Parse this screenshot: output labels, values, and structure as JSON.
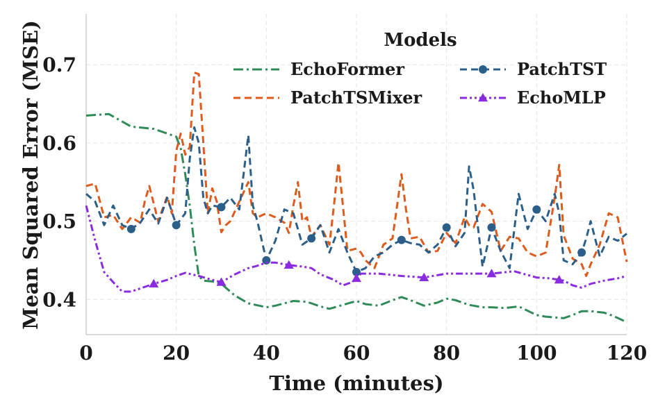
{
  "chart_data": {
    "type": "line",
    "xlabel": "Time (minutes)",
    "ylabel": "Mean Squared Error (MSE)",
    "xlim": [
      0,
      120
    ],
    "ylim": [
      0.355,
      0.765
    ],
    "xticks": [
      0,
      20,
      40,
      60,
      80,
      100,
      120
    ],
    "yticks": [
      0.4,
      0.5,
      0.6,
      0.7
    ],
    "xtick_labels": [
      "0",
      "20",
      "40",
      "60",
      "80",
      "100",
      "120"
    ],
    "ytick_labels": [
      "0.4",
      "0.5",
      "0.6",
      "0.7"
    ],
    "grid": true,
    "legend": {
      "title": "Models",
      "placement": "top-right",
      "columns": 2,
      "entries": [
        "EchoFormer",
        "PatchTST",
        "PatchTSMixer",
        "EchoMLP"
      ]
    },
    "series": [
      {
        "name": "EchoFormer",
        "color": "#2e8b57",
        "dash": "dash-dot",
        "marker": "none",
        "x": [
          0,
          5,
          10,
          15,
          20,
          21,
          22,
          23,
          24,
          25,
          26,
          28,
          30,
          33,
          36,
          40,
          42,
          46,
          49,
          52,
          54,
          57,
          60,
          62,
          65,
          68,
          70,
          72,
          75,
          78,
          80,
          82,
          85,
          88,
          90,
          93,
          96,
          100,
          102,
          104,
          106,
          108,
          110,
          112,
          115,
          117,
          120
        ],
        "y": [
          0.635,
          0.637,
          0.621,
          0.618,
          0.608,
          0.593,
          0.56,
          0.52,
          0.47,
          0.43,
          0.424,
          0.423,
          0.42,
          0.405,
          0.395,
          0.39,
          0.392,
          0.398,
          0.397,
          0.391,
          0.388,
          0.393,
          0.398,
          0.394,
          0.392,
          0.399,
          0.403,
          0.399,
          0.392,
          0.396,
          0.401,
          0.399,
          0.393,
          0.39,
          0.39,
          0.389,
          0.391,
          0.38,
          0.378,
          0.377,
          0.376,
          0.38,
          0.385,
          0.385,
          0.383,
          0.379,
          0.371
        ]
      },
      {
        "name": "PatchTSMixer",
        "color": "#e05a1c",
        "dash": "dashed",
        "marker": "none",
        "x": [
          0,
          2,
          4,
          6,
          8,
          10,
          12,
          13,
          14,
          16,
          18,
          19,
          20,
          21,
          22,
          23,
          24,
          25,
          26,
          27,
          28,
          29,
          30,
          31,
          32,
          34,
          36,
          37,
          38,
          40,
          42,
          44,
          45,
          46,
          47,
          48,
          49,
          50,
          52,
          54,
          55,
          56,
          57,
          58,
          60,
          61,
          62,
          64,
          66,
          68,
          70,
          71,
          72,
          74,
          76,
          78,
          80,
          82,
          84,
          85,
          86,
          88,
          90,
          92,
          94,
          96,
          98,
          100,
          102,
          104,
          105,
          106,
          108,
          110,
          111,
          112,
          114,
          116,
          118,
          120
        ],
        "y": [
          0.545,
          0.548,
          0.505,
          0.508,
          0.49,
          0.505,
          0.498,
          0.525,
          0.545,
          0.5,
          0.532,
          0.51,
          0.59,
          0.612,
          0.585,
          0.595,
          0.69,
          0.688,
          0.6,
          0.51,
          0.542,
          0.525,
          0.486,
          0.495,
          0.5,
          0.525,
          0.55,
          0.51,
          0.505,
          0.51,
          0.505,
          0.498,
          0.485,
          0.52,
          0.55,
          0.5,
          0.505,
          0.48,
          0.495,
          0.47,
          0.52,
          0.575,
          0.52,
          0.462,
          0.465,
          0.46,
          0.45,
          0.44,
          0.47,
          0.478,
          0.56,
          0.515,
          0.478,
          0.48,
          0.46,
          0.462,
          0.485,
          0.472,
          0.505,
          0.495,
          0.492,
          0.522,
          0.512,
          0.462,
          0.48,
          0.478,
          0.46,
          0.455,
          0.46,
          0.53,
          0.572,
          0.482,
          0.452,
          0.445,
          0.43,
          0.445,
          0.47,
          0.51,
          0.505,
          0.448
        ]
      },
      {
        "name": "PatchTST",
        "color": "#2b5f8a",
        "dash": "dashed",
        "marker": "circle",
        "x": [
          0,
          2,
          4,
          6,
          8,
          10,
          12,
          14,
          16,
          18,
          20,
          22,
          23,
          24,
          25,
          26,
          27,
          28,
          30,
          32,
          34,
          36,
          37,
          38,
          40,
          42,
          44,
          46,
          48,
          50,
          52,
          54,
          56,
          58,
          60,
          62,
          64,
          66,
          68,
          70,
          72,
          74,
          76,
          78,
          80,
          82,
          84,
          85,
          86,
          88,
          90,
          92,
          94,
          96,
          98,
          100,
          102,
          104,
          105,
          106,
          108,
          110,
          111,
          112,
          114,
          116,
          118,
          120
        ],
        "y": [
          0.535,
          0.525,
          0.495,
          0.52,
          0.495,
          0.49,
          0.498,
          0.515,
          0.497,
          0.53,
          0.495,
          0.51,
          0.58,
          0.62,
          0.6,
          0.53,
          0.51,
          0.52,
          0.518,
          0.53,
          0.515,
          0.61,
          0.52,
          0.5,
          0.45,
          0.475,
          0.515,
          0.51,
          0.47,
          0.478,
          0.495,
          0.46,
          0.49,
          0.46,
          0.435,
          0.44,
          0.455,
          0.46,
          0.47,
          0.476,
          0.472,
          0.47,
          0.46,
          0.47,
          0.492,
          0.468,
          0.485,
          0.57,
          0.54,
          0.442,
          0.492,
          0.462,
          0.44,
          0.535,
          0.49,
          0.515,
          0.5,
          0.535,
          0.51,
          0.45,
          0.445,
          0.46,
          0.478,
          0.5,
          0.455,
          0.48,
          0.475,
          0.484
        ]
      },
      {
        "name": "EchoMLP",
        "color": "#8a2be2",
        "dash": "dash-dot-dot",
        "marker": "triangle",
        "x": [
          0,
          2,
          4,
          6,
          8,
          10,
          12,
          15,
          18,
          20,
          22,
          25,
          28,
          30,
          33,
          36,
          38,
          40,
          42,
          45,
          48,
          50,
          52,
          55,
          57,
          59,
          60,
          61,
          65,
          70,
          75,
          80,
          85,
          90,
          95,
          100,
          103,
          105,
          106,
          108,
          110,
          112,
          115,
          118,
          120
        ],
        "y": [
          0.52,
          0.475,
          0.435,
          0.422,
          0.41,
          0.41,
          0.414,
          0.42,
          0.425,
          0.43,
          0.434,
          0.43,
          0.425,
          0.422,
          0.432,
          0.44,
          0.443,
          0.447,
          0.447,
          0.444,
          0.442,
          0.44,
          0.432,
          0.425,
          0.418,
          0.422,
          0.427,
          0.433,
          0.433,
          0.43,
          0.428,
          0.433,
          0.433,
          0.433,
          0.436,
          0.428,
          0.427,
          0.425,
          0.424,
          0.418,
          0.415,
          0.42,
          0.424,
          0.427,
          0.43
        ]
      }
    ]
  }
}
